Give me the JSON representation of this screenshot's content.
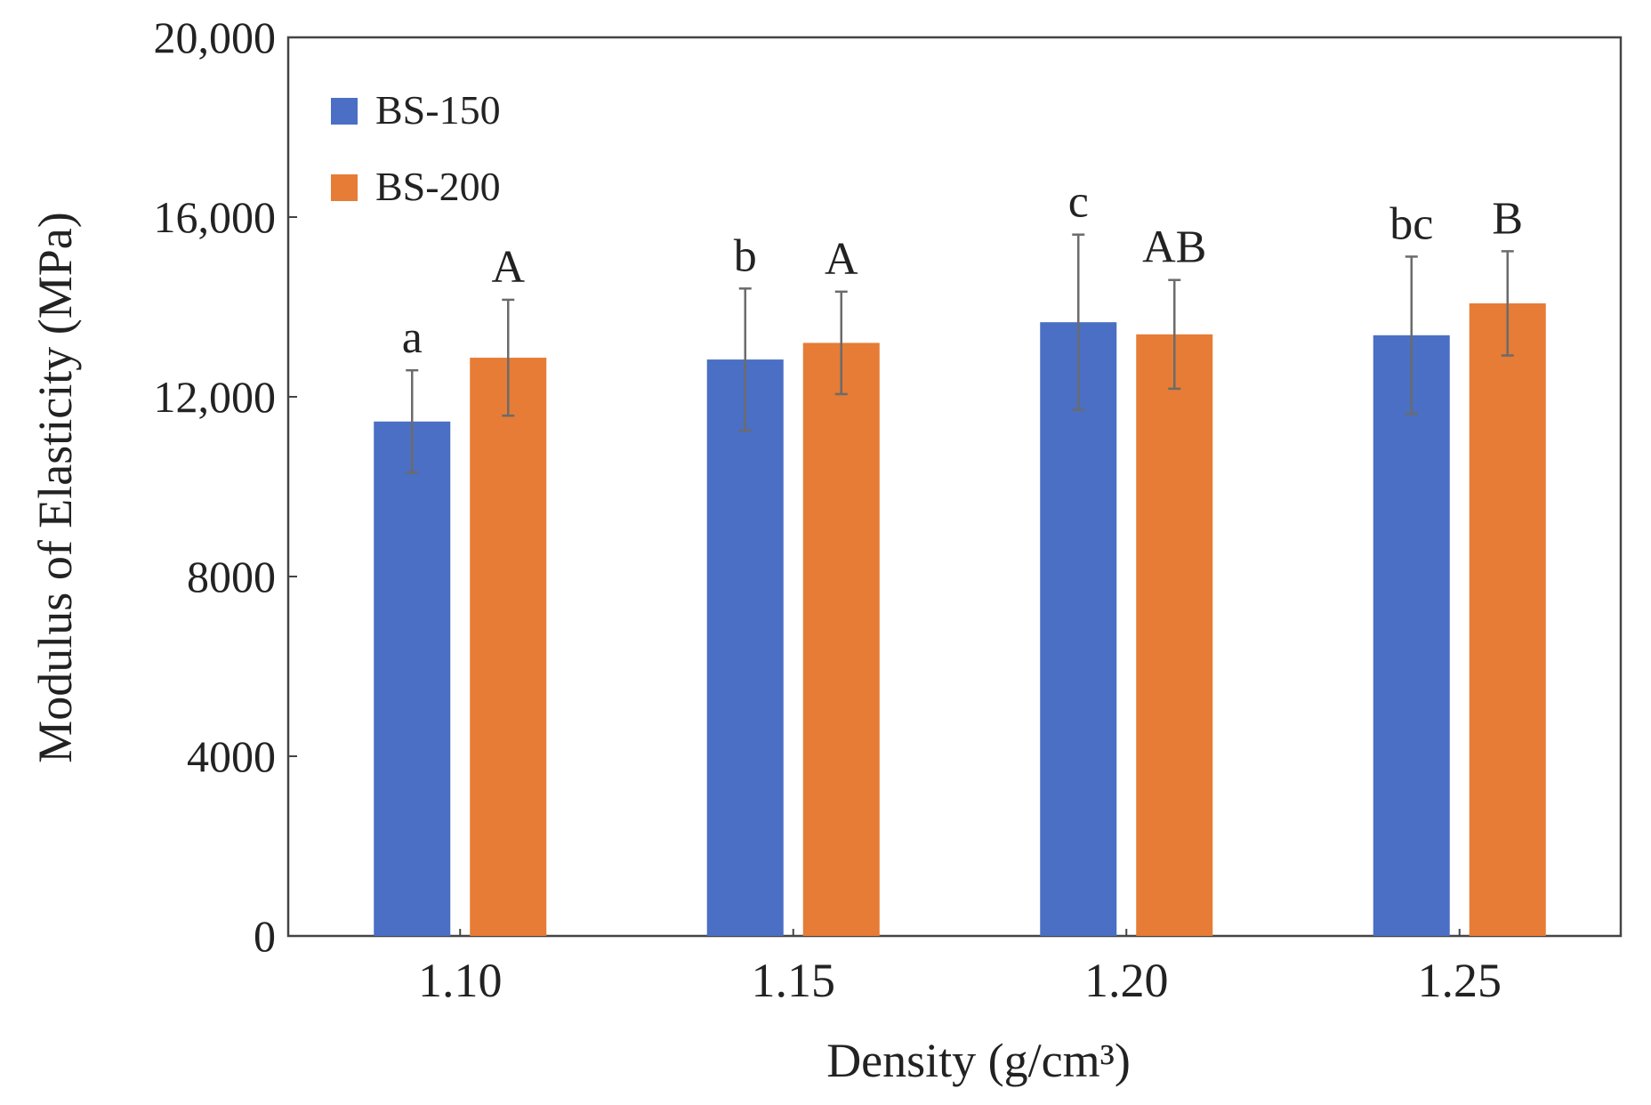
{
  "chart_data": {
    "type": "bar",
    "xlabel": "Density (g/cm³)",
    "ylabel": "Modulus of Elasticity (MPa)",
    "ylim": [
      0,
      20000
    ],
    "yticks": [
      {
        "value": 0,
        "label": "0"
      },
      {
        "value": 4000,
        "label": "4000"
      },
      {
        "value": 8000,
        "label": "8000"
      },
      {
        "value": 12000,
        "label": "12,000"
      },
      {
        "value": 16000,
        "label": "16,000"
      },
      {
        "value": 20000,
        "label": "20,000"
      }
    ],
    "categories": [
      "1.10",
      "1.15",
      "1.20",
      "1.25"
    ],
    "legend_position": "top-left",
    "grid": false,
    "series": [
      {
        "name": "BS-150",
        "color": "#4a6fc4",
        "values": [
          11450,
          12830,
          13660,
          13370
        ],
        "errors": [
          1140,
          1580,
          1950,
          1750
        ],
        "labels": [
          "a",
          "b",
          "c",
          "bc"
        ]
      },
      {
        "name": "BS-200",
        "color": "#e67c35",
        "values": [
          12870,
          13200,
          13390,
          14080
        ],
        "errors": [
          1290,
          1140,
          1210,
          1160
        ],
        "labels": [
          "A",
          "A",
          "AB",
          "B"
        ]
      }
    ]
  }
}
